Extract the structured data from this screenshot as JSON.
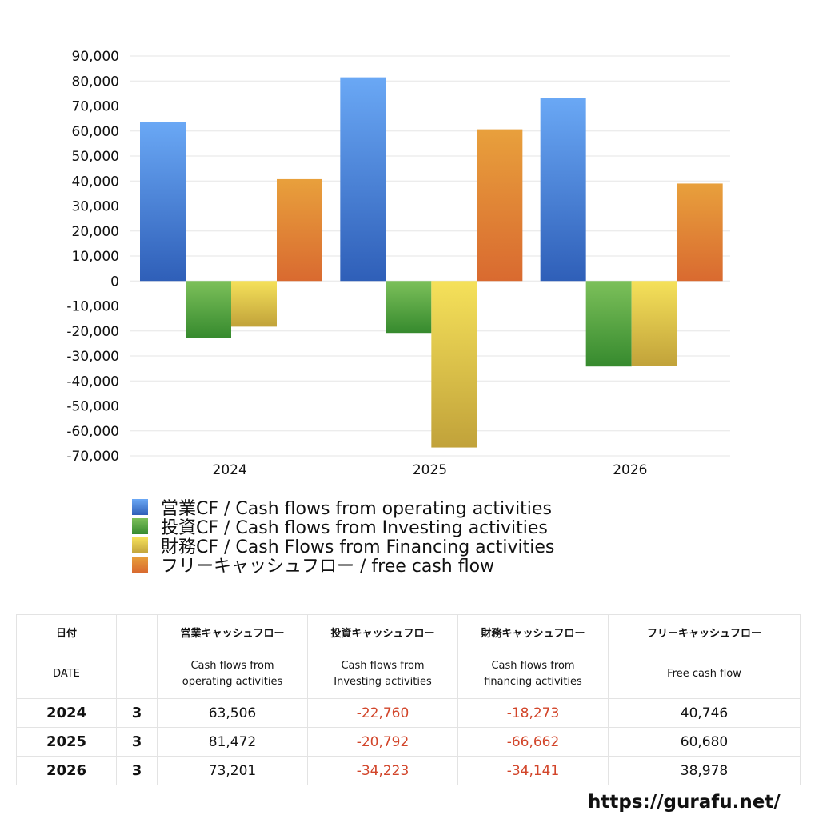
{
  "chart_data": {
    "type": "bar",
    "categories": [
      "2024",
      "2025",
      "2026"
    ],
    "series": [
      {
        "name": "営業CF / Cash flows from operating activities",
        "values": [
          63506,
          81472,
          73201
        ],
        "color_top": "#6aa8f5",
        "color_bottom": "#2f5fb8"
      },
      {
        "name": "投資CF / Cash flows from Investing activities",
        "values": [
          -22760,
          -20792,
          -34223
        ],
        "color_top": "#7cc05a",
        "color_bottom": "#368a2e"
      },
      {
        "name": "財務CF / Cash Flows from Financing activities",
        "values": [
          -18273,
          -66662,
          -34141
        ],
        "color_top": "#f5e15a",
        "color_bottom": "#c1a23a"
      },
      {
        "name": "フリーキャッシュフロー / free cash flow",
        "values": [
          40746,
          60680,
          38978
        ],
        "color_top": "#e8a03c",
        "color_bottom": "#d96a30"
      }
    ],
    "ylim": [
      -70000,
      90000
    ],
    "yticks": [
      "90,000",
      "80,000",
      "70,000",
      "60,000",
      "50,000",
      "40,000",
      "30,000",
      "20,000",
      "10,000",
      "0",
      "-10,000",
      "-20,000",
      "-30,000",
      "-40,000",
      "-50,000",
      "-60,000",
      "-70,000"
    ],
    "grid": true,
    "legend_position": "bottom"
  },
  "table": {
    "headers_jp": [
      "日付",
      "",
      "営業キャッシュフロー",
      "投資キャッシュフロー",
      "財務キャッシュフロー",
      "フリーキャッシュフロー"
    ],
    "headers_en": [
      [
        "DATE"
      ],
      [
        ""
      ],
      [
        "Cash flows from",
        "operating activities"
      ],
      [
        "Cash flows from",
        "Investing activities"
      ],
      [
        "Cash flows from",
        "financing activities"
      ],
      [
        "Free cash flow"
      ]
    ],
    "rows": [
      {
        "year": "2024",
        "month": "3",
        "op": "63,506",
        "inv": "-22,760",
        "fin": "-18,273",
        "fcf": "40,746"
      },
      {
        "year": "2025",
        "month": "3",
        "op": "81,472",
        "inv": "-20,792",
        "fin": "-66,662",
        "fcf": "60,680"
      },
      {
        "year": "2026",
        "month": "3",
        "op": "73,201",
        "inv": "-34,223",
        "fin": "-34,141",
        "fcf": "38,978"
      }
    ]
  },
  "site_url": "https://gurafu.net/"
}
